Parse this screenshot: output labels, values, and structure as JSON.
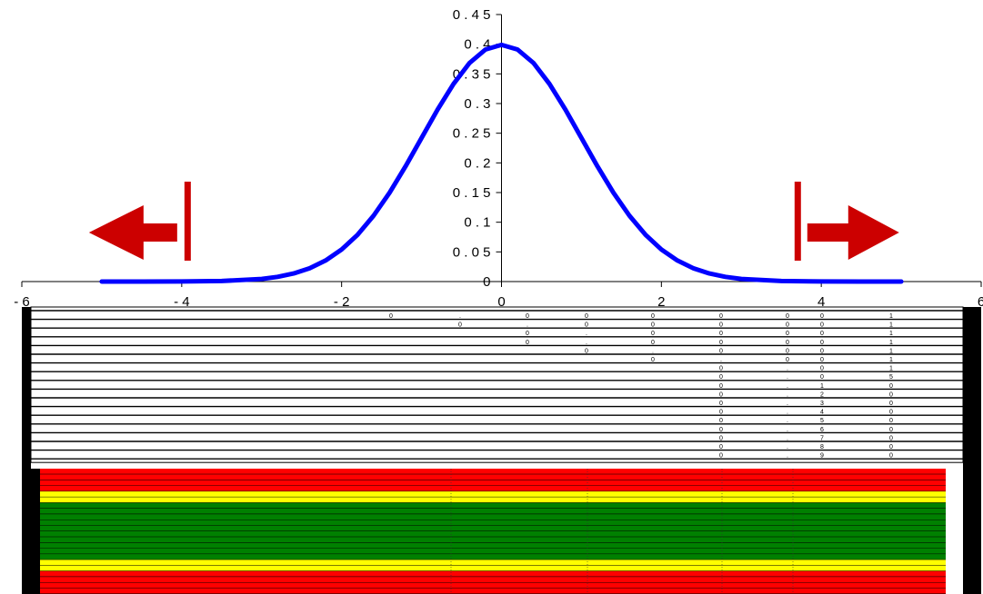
{
  "chart_data": {
    "type": "line",
    "title": "",
    "xlabel": "",
    "ylabel": "",
    "xlim": [
      -6,
      6
    ],
    "ylim": [
      0,
      0.45
    ],
    "x_ticks": [
      "- 6",
      "- 4",
      "- 2",
      "0",
      "2",
      "4",
      "6"
    ],
    "y_ticks": [
      "0",
      "0 . 0 5",
      "0 . 1",
      "0 . 1 5",
      "0 . 2",
      "0 . 2 5",
      "0 . 3",
      "0 . 3 5",
      "0 . 4",
      "0 . 4 5"
    ],
    "series": [
      {
        "color": "#0000ff",
        "x": [
          -5,
          -4.5,
          -4,
          -3.5,
          -3,
          -2.8,
          -2.6,
          -2.4,
          -2.2,
          -2,
          -1.8,
          -1.6,
          -1.4,
          -1.2,
          -1,
          -0.8,
          -0.6,
          -0.4,
          -0.2,
          0,
          0.2,
          0.4,
          0.6,
          0.8,
          1,
          1.2,
          1.4,
          1.6,
          1.8,
          2,
          2.2,
          2.4,
          2.6,
          2.8,
          3,
          3.5,
          4,
          4.5,
          5
        ],
        "y": [
          0.0,
          0.0,
          0.0001,
          0.0009,
          0.0044,
          0.0079,
          0.0136,
          0.0224,
          0.0355,
          0.054,
          0.079,
          0.1109,
          0.1497,
          0.1942,
          0.242,
          0.2897,
          0.3332,
          0.3683,
          0.391,
          0.3989,
          0.391,
          0.3683,
          0.3332,
          0.2897,
          0.242,
          0.1942,
          0.1497,
          0.1109,
          0.079,
          0.054,
          0.0355,
          0.0224,
          0.0136,
          0.0079,
          0.0044,
          0.0009,
          0.0001,
          0.0,
          0.0
        ]
      }
    ],
    "annotations": {
      "left_bar_x": -4,
      "right_bar_x": 3.7,
      "arrow_color": "#cc0000"
    },
    "color_bands": [
      {
        "color": "#ff0000",
        "count": 4
      },
      {
        "color": "#ffff00",
        "count": 2
      },
      {
        "color": "#008000",
        "count": 10
      },
      {
        "color": "#ffff00",
        "count": 2
      },
      {
        "color": "#ff0000",
        "count": 4
      }
    ],
    "table_rows": [
      [
        "0",
        ".",
        "0",
        "0",
        "0",
        "0",
        "0",
        "0",
        "1"
      ],
      [
        "0",
        ".",
        "0",
        "0",
        "0",
        "0",
        "0",
        "1"
      ],
      [
        "0",
        ".",
        "0",
        "0",
        "0",
        "0",
        "1"
      ],
      [
        "0",
        ".",
        "0",
        "0",
        "0",
        "0",
        "1"
      ],
      [
        "0",
        ".",
        "0",
        "0",
        "0",
        "1"
      ],
      [
        "0",
        ".",
        "0",
        "0",
        "1"
      ],
      [
        "0",
        ".",
        "0",
        "1"
      ],
      [
        "0",
        ".",
        "0",
        "5"
      ],
      [
        "0",
        ".",
        "1",
        "0"
      ],
      [
        "0",
        ".",
        "2",
        "0"
      ],
      [
        "0",
        ".",
        "3",
        "0"
      ],
      [
        "0",
        ".",
        "4",
        "0"
      ],
      [
        "0",
        ".",
        "5",
        "0"
      ],
      [
        "0",
        ".",
        "6",
        "0"
      ],
      [
        "0",
        ".",
        "7",
        "0"
      ],
      [
        "0",
        ".",
        "8",
        "0"
      ],
      [
        "0",
        ".",
        "9",
        "0"
      ]
    ]
  }
}
